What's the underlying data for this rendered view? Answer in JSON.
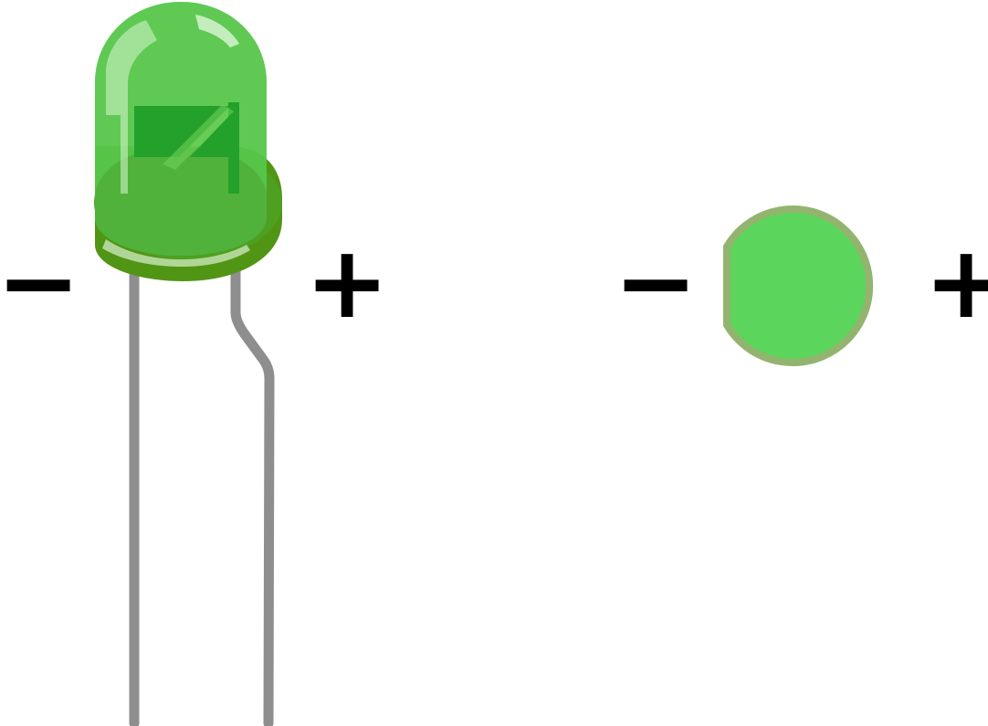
{
  "labels": {
    "side_view_negative": "−",
    "side_view_positive": "+",
    "top_view_negative": "−",
    "top_view_positive": "+"
  },
  "colors": {
    "lens_light": "#56c64a",
    "lens_dark": "#4ea021",
    "base_rim": "#519514",
    "die": "#23a12a",
    "lead": "#8e8e8e",
    "top_view_fill": "#5bd55b",
    "top_view_rim": "#93b46f",
    "text": "#000000"
  }
}
